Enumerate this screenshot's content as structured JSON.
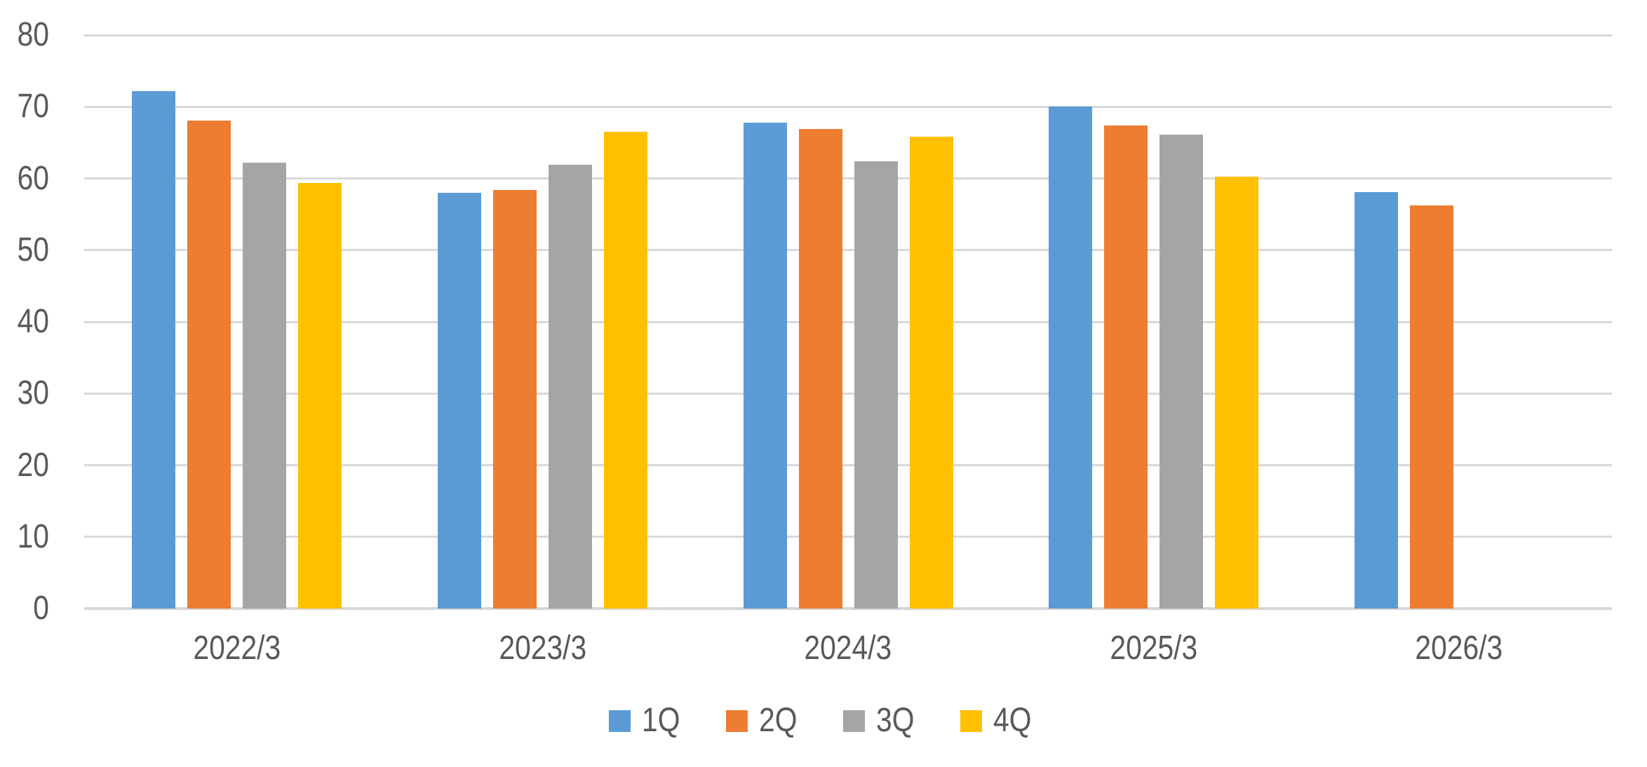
{
  "chart_data": {
    "type": "bar",
    "title": "",
    "categories": [
      "2022/3",
      "2023/3",
      "2024/3",
      "2025/3",
      "2026/3"
    ],
    "series": [
      {
        "name": "1Q",
        "color": "#5B9BD5",
        "values": [
          72.2,
          58.0,
          67.8,
          70.0,
          58.1
        ]
      },
      {
        "name": "2Q",
        "color": "#ED7D31",
        "values": [
          68.1,
          58.4,
          66.9,
          67.4,
          56.2
        ]
      },
      {
        "name": "3Q",
        "color": "#A5A5A5",
        "values": [
          62.2,
          61.9,
          62.4,
          66.1,
          null
        ]
      },
      {
        "name": "4Q",
        "color": "#FFC000",
        "values": [
          59.4,
          66.5,
          65.8,
          60.2,
          null
        ]
      }
    ],
    "xlabel": "",
    "ylabel": "",
    "ylim": [
      0,
      80
    ],
    "yticks": [
      0,
      10,
      20,
      30,
      40,
      50,
      60,
      70,
      80
    ],
    "grid": true,
    "gridline_color": "#D9D9D9",
    "axis_line_color": "#D6D6D6",
    "tick_label_color": "#595959",
    "background_color": "#FFFFFF",
    "legend_position": "bottom",
    "legend_entries": [
      "1Q",
      "2Q",
      "3Q",
      "4Q"
    ]
  }
}
